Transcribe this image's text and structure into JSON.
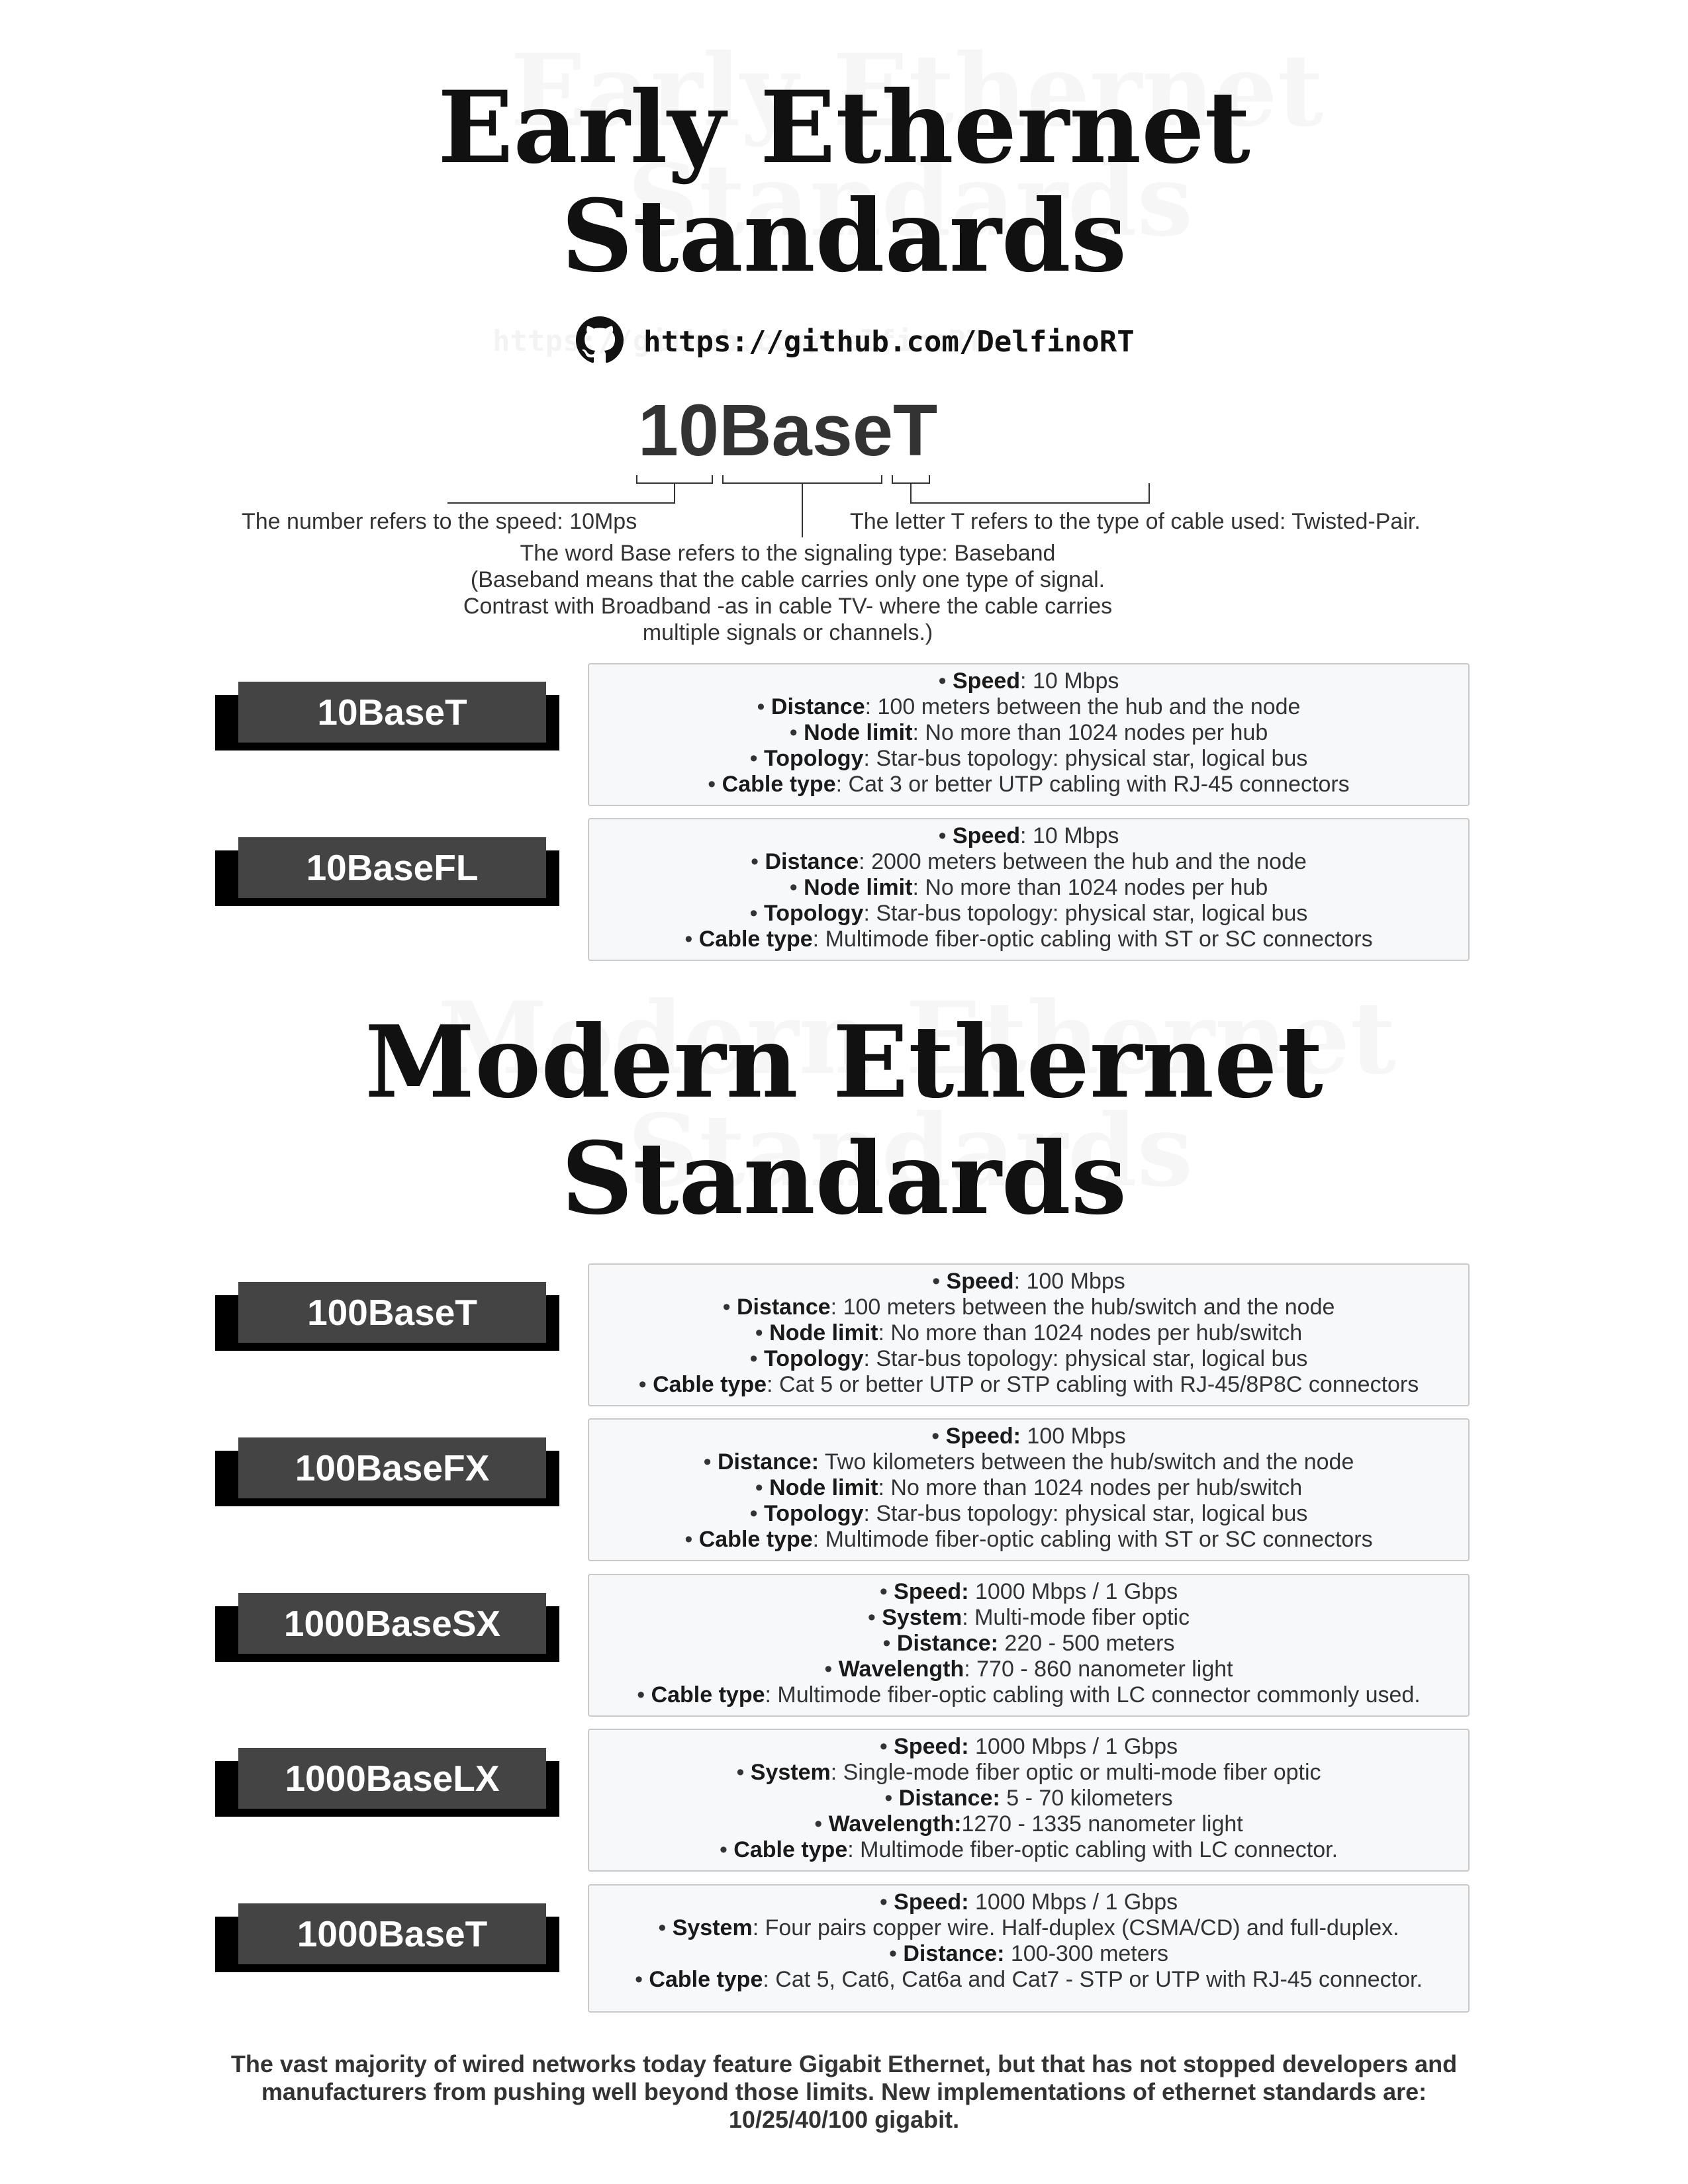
{
  "early": {
    "title_line1": "Early Ethernet",
    "title_line2": "Standards"
  },
  "github": {
    "icon": "github-icon",
    "url": "https://github.com/DelfinoRT"
  },
  "diagram": {
    "word": "10BaseT",
    "number_note": "The number refers to the speed: 10Mps",
    "letter_note": "The letter T refers to the type of cable used: Twisted-Pair.",
    "base_note_1": "The word Base refers to the signaling type: Baseband",
    "base_note_2": "(Baseband means that the cable carries only one type of signal.",
    "base_note_3": "Contrast with Broadband -as in cable TV- where the cable carries",
    "base_note_4": "multiple signals or channels.)"
  },
  "early_rows": [
    {
      "label": "10BaseT",
      "items": [
        {
          "k": "Speed",
          "s": ":",
          "v": " 10 Mbps"
        },
        {
          "k": "Distance",
          "s": ":",
          "v": " 100 meters between the hub and the node"
        },
        {
          "k": "Node limit",
          "s": ":",
          "v": " No more than 1024 nodes per hub"
        },
        {
          "k": "Topology",
          "s": ":",
          "v": " Star-bus topology: physical star, logical bus"
        },
        {
          "k": "Cable type",
          "s": ":",
          "v": " Cat 3 or better UTP cabling with RJ-45 connectors"
        }
      ]
    },
    {
      "label": "10BaseFL",
      "items": [
        {
          "k": "Speed",
          "s": ":",
          "v": " 10 Mbps"
        },
        {
          "k": "Distance",
          "s": ":",
          "v": " 2000 meters between the hub and the node"
        },
        {
          "k": "Node limit",
          "s": ":",
          "v": " No more than 1024 nodes per hub"
        },
        {
          "k": "Topology",
          "s": ":",
          "v": " Star-bus topology: physical star, logical bus"
        },
        {
          "k": "Cable type",
          "s": ":",
          "v": " Multimode fiber-optic cabling with ST or SC connectors"
        }
      ]
    }
  ],
  "modern": {
    "title_line1": "Modern Ethernet",
    "title_line2": "Standards"
  },
  "modern_rows": [
    {
      "label": "100BaseT",
      "items": [
        {
          "k": "Speed",
          "s": ":",
          "v": " 100 Mbps"
        },
        {
          "k": "Distance",
          "s": ":",
          "v": " 100 meters between the hub/switch and the node"
        },
        {
          "k": "Node limit",
          "s": ":",
          "v": " No more than 1024 nodes per hub/switch"
        },
        {
          "k": "Topology",
          "s": ":",
          "v": " Star-bus topology: physical star, logical bus"
        },
        {
          "k": "Cable type",
          "s": ":",
          "v": " Cat 5 or better UTP or STP cabling with RJ-45/8P8C connectors"
        }
      ]
    },
    {
      "label": "100BaseFX",
      "items": [
        {
          "k": "Speed:",
          "s": "",
          "v": " 100 Mbps"
        },
        {
          "k": "Distance:",
          "s": "",
          "v": " Two kilometers between the hub/switch and the node"
        },
        {
          "k": "Node limit",
          "s": ":",
          "v": " No more than 1024 nodes per hub/switch"
        },
        {
          "k": "Topology",
          "s": ":",
          "v": " Star-bus topology: physical star, logical bus"
        },
        {
          "k": "Cable type",
          "s": ":",
          "v": " Multimode fiber-optic cabling with ST or SC connectors"
        }
      ]
    },
    {
      "label": "1000BaseSX",
      "items": [
        {
          "k": "Speed:",
          "s": "",
          "v": " 1000 Mbps / 1 Gbps"
        },
        {
          "k": "System",
          "s": ":",
          "v": " Multi-mode fiber optic"
        },
        {
          "k": "Distance:",
          "s": "",
          "v": " 220 - 500 meters"
        },
        {
          "k": "Wavelength",
          "s": ":",
          "v": " 770 - 860 nanometer light"
        },
        {
          "k": "Cable type",
          "s": ":",
          "v": " Multimode fiber-optic cabling with LC connector commonly used."
        }
      ]
    },
    {
      "label": "1000BaseLX",
      "items": [
        {
          "k": "Speed:",
          "s": "",
          "v": " 1000 Mbps / 1 Gbps"
        },
        {
          "k": "System",
          "s": ":",
          "v": " Single-mode fiber optic or multi-mode fiber optic"
        },
        {
          "k": "Distance:",
          "s": "",
          "v": " 5 - 70 kilometers"
        },
        {
          "k": "Wavelength:",
          "s": "",
          "v": "1270 - 1335 nanometer light"
        },
        {
          "k": "Cable type",
          "s": ":",
          "v": " Multimode fiber-optic cabling with LC connector."
        }
      ]
    },
    {
      "label": "1000BaseT",
      "items": [
        {
          "k": "Speed:",
          "s": "",
          "v": " 1000 Mbps / 1 Gbps"
        },
        {
          "k": "System",
          "s": ":",
          "v": " Four pairs copper wire. Half-duplex (CSMA/CD) and full-duplex."
        },
        {
          "k": "Distance:",
          "s": "",
          "v": " 100-300 meters"
        },
        {
          "k": "Cable type",
          "s": ":",
          "v": " Cat 5, Cat6, Cat6a and Cat7 - STP or UTP with RJ-45 connector."
        }
      ]
    }
  ],
  "footer": {
    "line1": "The vast majority of wired networks today feature Gigabit Ethernet, but that has not stopped developers and",
    "line2": "manufacturers from pushing well beyond those limits. New implementations of ethernet standards are:",
    "line3": "10/25/40/100 gigabit."
  },
  "colors": {
    "label_bg": "#444444",
    "label_shadow": "#000000",
    "box_bg": "#f7f8fa",
    "box_border": "#c9c9c9"
  }
}
